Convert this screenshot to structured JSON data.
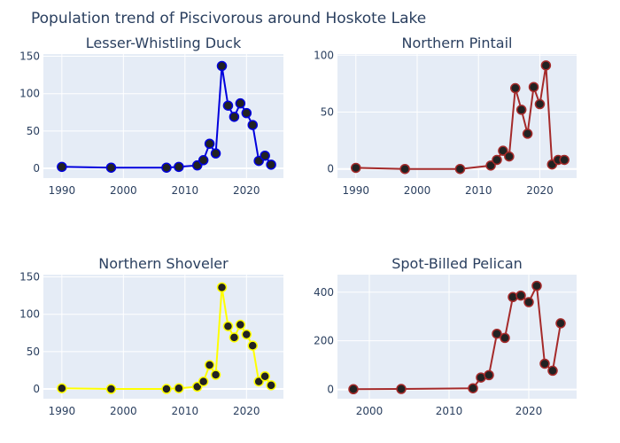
{
  "title": "Population trend of Piscivorous around Hoskote Lake",
  "chart_data": [
    {
      "type": "line",
      "title": "Lesser-Whistling Duck",
      "color": "#0000dd",
      "x": [
        1990,
        1998,
        2007,
        2009,
        2012,
        2013,
        2014,
        2015,
        2016,
        2017,
        2018,
        2019,
        2020,
        2021,
        2022,
        2023,
        2024
      ],
      "y": [
        2,
        1,
        1,
        2,
        4,
        11,
        33,
        20,
        137,
        84,
        69,
        87,
        74,
        58,
        10,
        17,
        5
      ],
      "xlim": [
        1987,
        2026
      ],
      "ylim": [
        -13,
        153
      ],
      "xticks": [
        1990,
        2000,
        2010,
        2020
      ],
      "yticks": [
        0,
        50,
        100,
        150
      ]
    },
    {
      "type": "line",
      "title": "Northern Pintail",
      "color": "#a52a2a",
      "x": [
        1990,
        1998,
        2007,
        2012,
        2013,
        2014,
        2015,
        2016,
        2017,
        2018,
        2019,
        2020,
        2021,
        2022,
        2023,
        2024
      ],
      "y": [
        1,
        0,
        0,
        3,
        8,
        16,
        11,
        71,
        52,
        31,
        72,
        57,
        91,
        4,
        8,
        8
      ],
      "xlim": [
        1987,
        2026
      ],
      "ylim": [
        -8,
        101
      ],
      "xticks": [
        1990,
        2000,
        2010,
        2020
      ],
      "yticks": [
        0,
        50,
        100
      ]
    },
    {
      "type": "line",
      "title": "Northern Shoveler",
      "color": "#ffff00",
      "x": [
        1990,
        1998,
        2007,
        2009,
        2012,
        2013,
        2014,
        2015,
        2016,
        2017,
        2018,
        2019,
        2020,
        2021,
        2022,
        2023,
        2024
      ],
      "y": [
        1,
        0,
        0,
        1,
        3,
        10,
        32,
        19,
        136,
        84,
        69,
        86,
        73,
        58,
        10,
        17,
        5
      ],
      "xlim": [
        1987,
        2026
      ],
      "ylim": [
        -13,
        153
      ],
      "xticks": [
        1990,
        2000,
        2010,
        2020
      ],
      "yticks": [
        0,
        50,
        100,
        150
      ]
    },
    {
      "type": "line",
      "title": "Spot-Billed Pelican",
      "color": "#a52a2a",
      "x": [
        1998,
        2004,
        2013,
        2014,
        2015,
        2016,
        2017,
        2018,
        2019,
        2020,
        2021,
        2022,
        2023,
        2024
      ],
      "y": [
        1,
        2,
        5,
        49,
        59,
        229,
        212,
        380,
        386,
        359,
        426,
        106,
        77,
        272
      ],
      "xlim": [
        1996,
        2026
      ],
      "ylim": [
        -38,
        472
      ],
      "xticks": [
        2000,
        2010,
        2020
      ],
      "yticks": [
        0,
        200,
        400
      ]
    }
  ]
}
